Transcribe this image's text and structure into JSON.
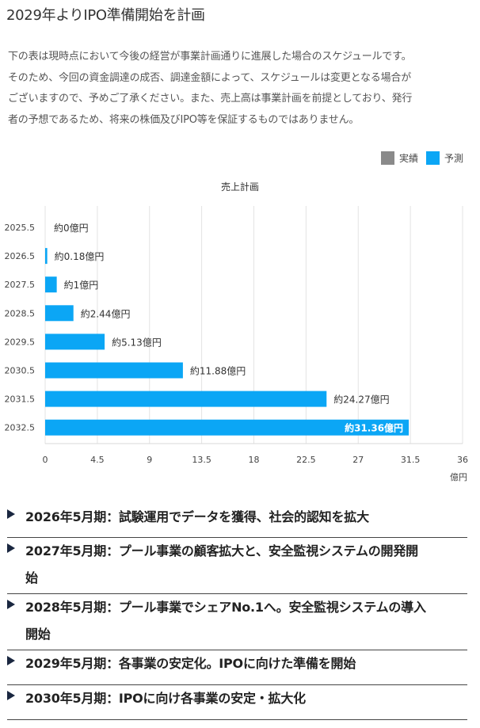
{
  "page": {
    "title": "2029年よりIPO準備開始を計画",
    "intro_lines": [
      "下の表は現時点において今後の経営が事業計画通りに進展した場合のスケジュールです。",
      "そのため、今回の資金調達の成否、調達金額によって、スケジュールは変更となる場合が",
      "ございますので、予めご了承ください。また、売上高は事業計画を前提としており、発行",
      "者の予想であるため、将来の株価及びIPO等を保証するものではありません。"
    ]
  },
  "legend": {
    "items": [
      {
        "label": "実績",
        "color": "#8a8a8a"
      },
      {
        "label": "予測",
        "color": "#0ba6f5"
      }
    ]
  },
  "chart_data": {
    "type": "bar",
    "orientation": "horizontal",
    "title": "売上計画",
    "categories": [
      "2025.5",
      "2026.5",
      "2027.5",
      "2028.5",
      "2029.5",
      "2030.5",
      "2031.5",
      "2032.5"
    ],
    "values": [
      0,
      0.18,
      1,
      2.44,
      5.13,
      11.88,
      24.27,
      31.36
    ],
    "data_labels": [
      "約0億円",
      "約0.18億円",
      "約1億円",
      "約2.44億円",
      "約5.13億円",
      "約11.88億円",
      "約24.27億円",
      "約31.36億円"
    ],
    "series_name": "予測",
    "bar_color": "#0ba6f5",
    "xlim": [
      0,
      36
    ],
    "xticks": [
      0,
      4.5,
      9,
      13.5,
      18,
      22.5,
      27,
      31.5,
      36
    ],
    "xtick_labels": [
      "0",
      "4.5",
      "9",
      "13.5",
      "18",
      "22.5",
      "27",
      "31.5",
      "36"
    ],
    "xunit": "億円",
    "grid": true,
    "legend_position": "top-right"
  },
  "milestones": [
    {
      "lines": [
        "2026年5月期：試験運用でデータを獲得、社会的認知を拡大"
      ]
    },
    {
      "lines": [
        "2027年5月期：プール事業の顧客拡大と、安全監視システムの開発開",
        "始"
      ]
    },
    {
      "lines": [
        "2028年5月期：プール事業でシェアNo.1へ。安全監視システムの導入",
        "開始"
      ]
    },
    {
      "lines": [
        "2029年5月期：各事業の安定化。IPOに向けた準備を開始"
      ]
    },
    {
      "lines": [
        "2030年5月期：IPOに向け各事業の安定・拡大化"
      ]
    }
  ]
}
